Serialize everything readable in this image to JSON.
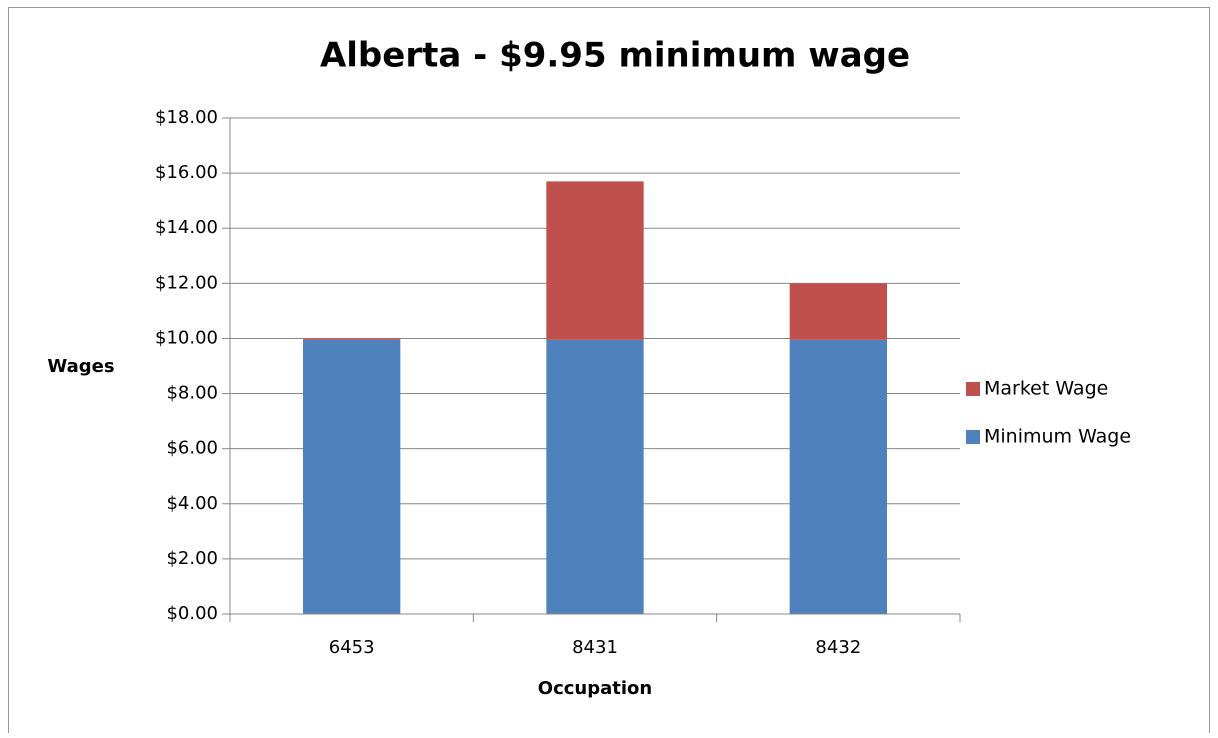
{
  "chart_data": {
    "type": "stacked_bar",
    "title": "Alberta - $9.95 minimum wage",
    "x_label": "Occupation",
    "y_label": "Wages",
    "categories": [
      "6453",
      "8431",
      "8432"
    ],
    "series": [
      {
        "name": "Minimum Wage",
        "color": "#4f81bd",
        "values": [
          9.95,
          9.95,
          9.95
        ]
      },
      {
        "name": "Market Wage",
        "color": "#c0504d",
        "values": [
          0.05,
          5.75,
          2.05
        ]
      }
    ],
    "ylim": [
      0,
      18
    ],
    "yticks": [
      {
        "value": 0,
        "label": "$0.00"
      },
      {
        "value": 2,
        "label": "$2.00"
      },
      {
        "value": 4,
        "label": "$4.00"
      },
      {
        "value": 6,
        "label": "$6.00"
      },
      {
        "value": 8,
        "label": "$8.00"
      },
      {
        "value": 10,
        "label": "$10.00"
      },
      {
        "value": 12,
        "label": "$12.00"
      },
      {
        "value": 14,
        "label": "$14.00"
      },
      {
        "value": 16,
        "label": "$16.00"
      },
      {
        "value": 18,
        "label": "$18.00"
      }
    ],
    "grid": true,
    "legend": "right"
  }
}
